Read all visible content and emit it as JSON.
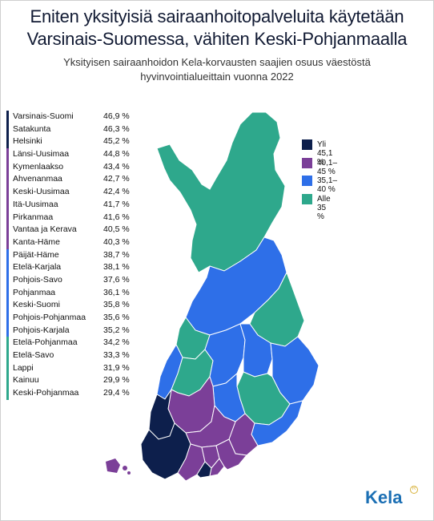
{
  "title_line1": "Eniten yksityisiä sairaanhoitopalveluita käytetään",
  "title_line2": "Varsinais-Suomessa, vähiten Keski-Pohjanmaalla",
  "subtitle_line1": "Yksityisen sairaanhoidon Kela-korvausten saajien osuus väestöstä",
  "subtitle_line2": "hyvinvointialueittain vuonna 2022",
  "colors": {
    "dark_navy": "#0d1f4c",
    "purple": "#7b3f98",
    "blue": "#2e6fe8",
    "green": "#2ea88c"
  },
  "regions": [
    {
      "name": "Varsinais-Suomi",
      "value": "46,9 %",
      "group": "dark_navy"
    },
    {
      "name": "Satakunta",
      "value": "46,3 %",
      "group": "dark_navy"
    },
    {
      "name": "Helsinki",
      "value": "45,2 %",
      "group": "dark_navy"
    },
    {
      "name": "Länsi-Uusimaa",
      "value": "44,8 %",
      "group": "purple"
    },
    {
      "name": "Kymenlaakso",
      "value": "43,4 %",
      "group": "purple"
    },
    {
      "name": "Ahvenanmaa",
      "value": "42,7 %",
      "group": "purple"
    },
    {
      "name": "Keski-Uusimaa",
      "value": "42,4 %",
      "group": "purple"
    },
    {
      "name": "Itä-Uusimaa",
      "value": "41,7 %",
      "group": "purple"
    },
    {
      "name": "Pirkanmaa",
      "value": "41,6 %",
      "group": "purple"
    },
    {
      "name": "Vantaa ja Kerava",
      "value": "40,5 %",
      "group": "purple"
    },
    {
      "name": "Kanta-Häme",
      "value": "40,3 %",
      "group": "purple"
    },
    {
      "name": "Päijät-Häme",
      "value": "38,7 %",
      "group": "blue"
    },
    {
      "name": "Etelä-Karjala",
      "value": "38,1 %",
      "group": "blue"
    },
    {
      "name": "Pohjois-Savo",
      "value": "37,6 %",
      "group": "blue"
    },
    {
      "name": "Pohjanmaa",
      "value": "36,1 %",
      "group": "blue"
    },
    {
      "name": "Keski-Suomi",
      "value": "35,8 %",
      "group": "blue"
    },
    {
      "name": "Pohjois-Pohjanmaa",
      "value": "35,6 %",
      "group": "blue"
    },
    {
      "name": "Pohjois-Karjala",
      "value": "35,2 %",
      "group": "blue"
    },
    {
      "name": "Etelä-Pohjanmaa",
      "value": "34,2 %",
      "group": "green"
    },
    {
      "name": "Etelä-Savo",
      "value": "33,3 %",
      "group": "green"
    },
    {
      "name": "Lappi",
      "value": "31,9 %",
      "group": "green"
    },
    {
      "name": "Kainuu",
      "value": "29,9 %",
      "group": "green"
    },
    {
      "name": "Keski-Pohjanmaa",
      "value": "29,4 %",
      "group": "green"
    }
  ],
  "key": [
    {
      "label": "Yli 45,1 %",
      "group": "dark_navy"
    },
    {
      "label": "40,1–45 %",
      "group": "purple"
    },
    {
      "label": "35,1–40 %",
      "group": "blue"
    },
    {
      "label": "Alle 35 %",
      "group": "green"
    }
  ],
  "logo_text": "Kela"
}
